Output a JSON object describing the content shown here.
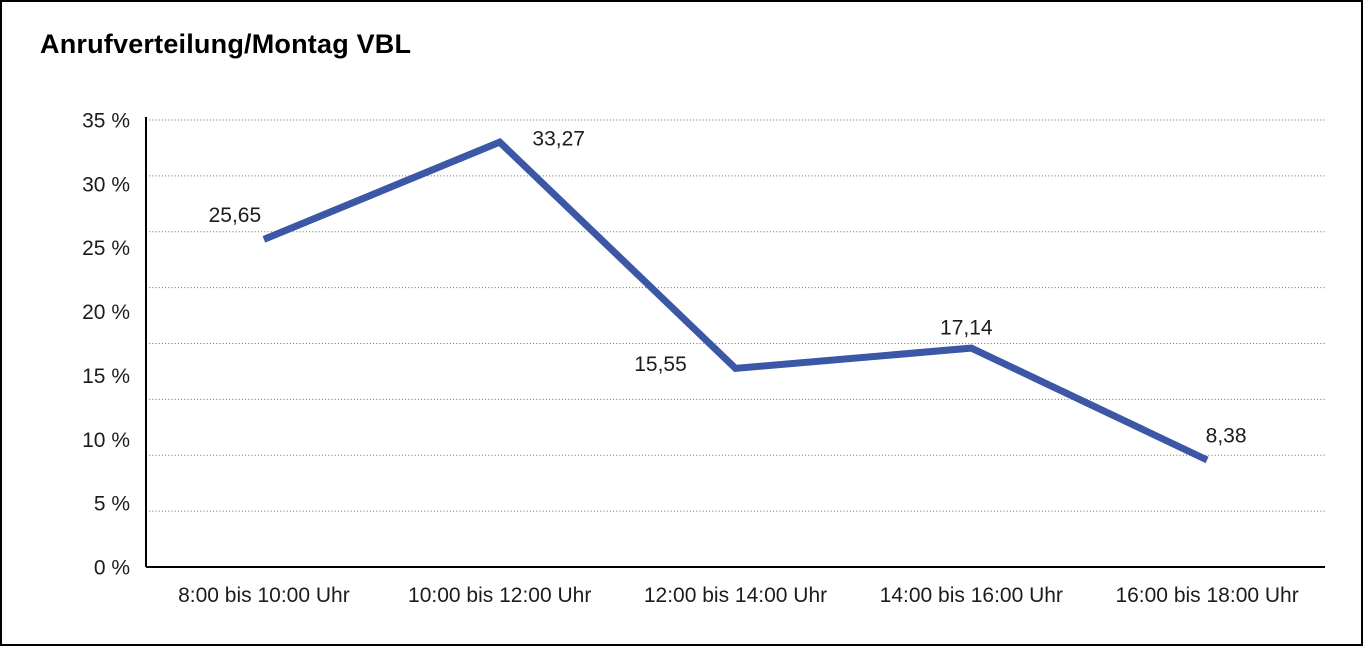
{
  "page": {
    "background": "#ffffff",
    "frame_color": "#000000"
  },
  "chart_data": {
    "type": "line",
    "title": "Anrufverteilung/Montag VBL",
    "categories": [
      "8:00 bis 10:00 Uhr",
      "10:00 bis 12:00 Uhr",
      "12:00 bis 14:00 Uhr",
      "14:00 bis 16:00 Uhr",
      "16:00 bis 18:00 Uhr"
    ],
    "values": [
      25.65,
      33.27,
      15.55,
      17.14,
      8.38
    ],
    "point_labels": [
      "25,65",
      "33,27",
      "15,55",
      "17,14",
      "8,38"
    ],
    "xlabel": "",
    "ylabel": "",
    "ylim": [
      0,
      35
    ],
    "ytick_step": 5,
    "ytick_labels": [
      "0 %",
      "5 %",
      "10 %",
      "15 %",
      "20 %",
      "25 %",
      "30 %",
      "35 %"
    ],
    "grid": "horizontal-dotted",
    "grid_divisions": 8,
    "legend": "none",
    "line_color": "#3B57A5",
    "axis_color": "#000000",
    "gridline_color": "#6e6e6e",
    "label_color": "#1c1c1c"
  }
}
